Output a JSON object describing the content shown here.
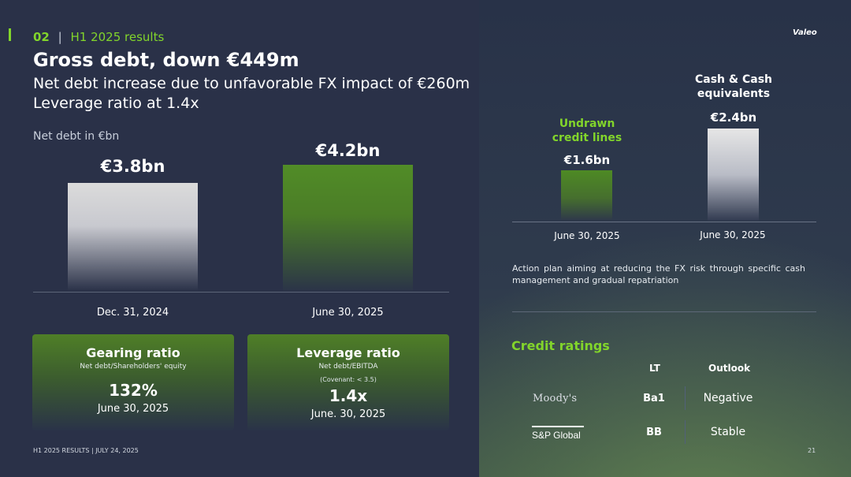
{
  "header": {
    "section_number": "02",
    "section_name": "H1 2025 results",
    "title": "Gross debt, down €449m",
    "subtitle_line1": "Net debt increase due to unfavorable FX impact of €260m",
    "subtitle_line2": "Leverage ratio at 1.4x"
  },
  "net_debt_chart": {
    "label": "Net debt in €bn",
    "bars": [
      {
        "value_label": "€3.8bn",
        "date": "Dec. 31, 2024",
        "value": 3.8,
        "color": "#d8d8d8"
      },
      {
        "value_label": "€4.2bn",
        "date": "June 30, 2025",
        "value": 4.2,
        "color": "#4d8b26"
      }
    ]
  },
  "cards": [
    {
      "title": "Gearing ratio",
      "subtitle": "Net debt/Shareholders' equity",
      "note": "",
      "value": "132%",
      "date": "June 30, 2025"
    },
    {
      "title": "Leverage ratio",
      "subtitle": "Net debt/EBITDA",
      "note": "(Covenant: < 3.5)",
      "value": "1.4x",
      "date": "June. 30, 2025"
    }
  ],
  "liquidity": {
    "undrawn": {
      "title_line1": "Undrawn",
      "title_line2": "credit lines",
      "value_label": "€1.6bn",
      "value": 1.6,
      "date": "June 30, 2025",
      "color": "#5a9d2d"
    },
    "cash": {
      "title_line1": "Cash & Cash",
      "title_line2": "equivalents",
      "value_label": "€2.4bn",
      "value": 2.4,
      "date": "June 30, 2025",
      "color": "#e8e8e8"
    }
  },
  "action_text": "Action plan aiming at reducing the FX risk through specific cash management and gradual repatriation",
  "credit_ratings": {
    "title": "Credit ratings",
    "headers": {
      "lt": "LT",
      "outlook": "Outlook"
    },
    "rows": [
      {
        "agency": "Moody's",
        "lt": "Ba1",
        "outlook": "Negative"
      },
      {
        "agency": "S&P Global",
        "lt": "BB",
        "outlook": "Stable"
      }
    ]
  },
  "footer": {
    "left": "H1 2025 RESULTS | JULY 24, 2025",
    "page": "21",
    "logo": "Valeo"
  },
  "colors": {
    "accent_green": "#82d52b",
    "background": "#2a3148"
  }
}
